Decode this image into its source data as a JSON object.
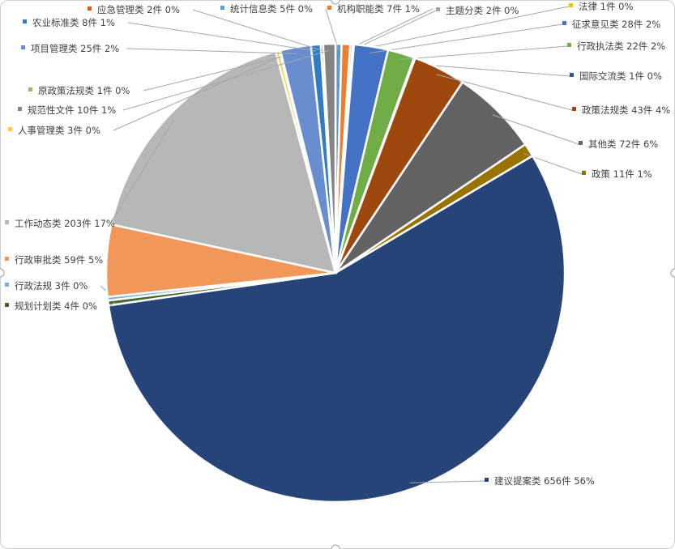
{
  "chart_data": {
    "type": "pie",
    "start_angle": "12 o'clock",
    "direction": "clockwise",
    "slices": [
      {
        "label": "统计信息类",
        "count": 5,
        "unit": "件",
        "percent": "0%",
        "color": "#5B9BD5"
      },
      {
        "label": "机构职能类",
        "count": 7,
        "unit": "件",
        "percent": "1%",
        "color": "#ED7D31"
      },
      {
        "label": "主题分类",
        "count": 2,
        "unit": "件",
        "percent": "0%",
        "color": "#A5A5A5"
      },
      {
        "label": "法律",
        "count": 1,
        "unit": "件",
        "percent": "0%",
        "color": "#FFC000"
      },
      {
        "label": "征求意见类",
        "count": 28,
        "unit": "件",
        "percent": "2%",
        "color": "#4472C4"
      },
      {
        "label": "行政执法类",
        "count": 22,
        "unit": "件",
        "percent": "2%",
        "color": "#70AD47"
      },
      {
        "label": "国际交流类",
        "count": 1,
        "unit": "件",
        "percent": "0%",
        "color": "#255E91"
      },
      {
        "label": "政策法规类",
        "count": 43,
        "unit": "件",
        "percent": "4%",
        "color": "#9E480E"
      },
      {
        "label": "其他类",
        "count": 72,
        "unit": "件",
        "percent": "6%",
        "color": "#636363"
      },
      {
        "label": "政策",
        "count": 11,
        "unit": "件",
        "percent": "1%",
        "color": "#997300"
      },
      {
        "label": "建议提案类",
        "count": 656,
        "unit": "件",
        "percent": "56%",
        "color": "#264478"
      },
      {
        "label": "规划计划类",
        "count": 4,
        "unit": "件",
        "percent": "0%",
        "color": "#43682B"
      },
      {
        "label": "行政法规",
        "count": 3,
        "unit": "件",
        "percent": "0%",
        "color": "#7CAFDD"
      },
      {
        "label": "行政审批类",
        "count": 59,
        "unit": "件",
        "percent": "5%",
        "color": "#F1975A"
      },
      {
        "label": "工作动态类",
        "count": 203,
        "unit": "件",
        "percent": "17%",
        "color": "#B7B7B7"
      },
      {
        "label": "人事管理类",
        "count": 3,
        "unit": "件",
        "percent": "0%",
        "color": "#FFCD33"
      },
      {
        "label": "原政策法规类",
        "count": 1,
        "unit": "件",
        "percent": "0%",
        "color": "#8CC168"
      },
      {
        "label": "项目管理类",
        "count": 25,
        "unit": "件",
        "percent": "2%",
        "color": "#698ED0"
      },
      {
        "label": "农业标准类",
        "count": 8,
        "unit": "件",
        "percent": "1%",
        "color": "#327DC2"
      },
      {
        "label": "应急管理类",
        "count": 2,
        "unit": "件",
        "percent": "0%",
        "color": "#D26012"
      },
      {
        "label": "规范性文件",
        "count": 10,
        "unit": "件",
        "percent": "1%",
        "color": "#848484"
      }
    ]
  }
}
